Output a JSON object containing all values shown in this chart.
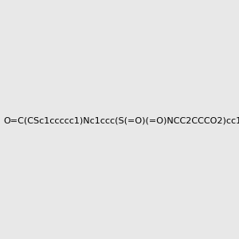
{
  "smiles": "O=C(CSc1ccccc1)Nc1ccc(S(=O)(=O)NCC2CCCO2)cc1",
  "img_size": [
    300,
    300
  ],
  "background_color": "#e8e8e8",
  "title": "",
  "atom_colors": {
    "N": "#4682b4",
    "O": "#ff0000",
    "S": "#cccc00"
  }
}
